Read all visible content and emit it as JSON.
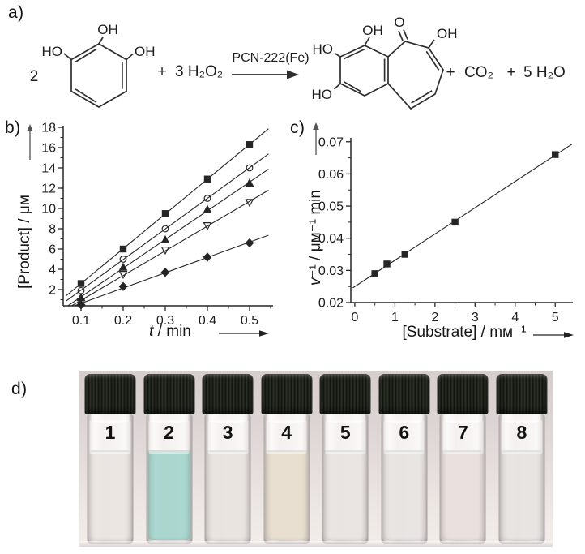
{
  "figure": {
    "panel_a_label": "a)",
    "panel_b_label": "b)",
    "panel_c_label": "c)",
    "panel_d_label": "d)"
  },
  "reaction": {
    "coefficient_left": "2",
    "plus_1": "+",
    "oxidant": "3 H₂O₂",
    "catalyst": "PCN-222(Fe)",
    "plus_2": "+",
    "co2": "CO₂",
    "plus_3": "+",
    "water": "5 H₂O",
    "labels": {
      "oh": "OH",
      "ho": "HO",
      "o": "O"
    }
  },
  "panels": {
    "b": {
      "ylabel": "[Product] / μᴍ",
      "xlabel_italic": "t",
      "xlabel_rest": " / min"
    },
    "c": {
      "ylabel_italic": "v",
      "ylabel_rest": "⁻¹ / μᴍ⁻¹ min",
      "xlabel": "[Substrate] / mᴍ⁻¹"
    },
    "d": {
      "cap_color": "#1d211b",
      "vials": [
        {
          "number": "1",
          "liquid_color": "#ece6e3"
        },
        {
          "number": "2",
          "liquid_color": "#a7d6ce"
        },
        {
          "number": "3",
          "liquid_color": "#eae4e1"
        },
        {
          "number": "4",
          "liquid_color": "#e8dfd0"
        },
        {
          "number": "5",
          "liquid_color": "#eae5e2"
        },
        {
          "number": "6",
          "liquid_color": "#e9e5e2"
        },
        {
          "number": "7",
          "liquid_color": "#eae1de"
        },
        {
          "number": "8",
          "liquid_color": "#e7e4e1"
        }
      ]
    }
  },
  "chart_data": [
    {
      "id": "panel-b",
      "type": "scatter",
      "title": "",
      "xlabel": "t / min",
      "ylabel": "[Product] / μM",
      "x": [
        0.1,
        0.2,
        0.3,
        0.4,
        0.5
      ],
      "series": [
        {
          "name": "filled-square",
          "marker": "square",
          "filled": true,
          "values": [
            2.6,
            6.0,
            9.5,
            12.9,
            16.3
          ]
        },
        {
          "name": "open-circle",
          "marker": "circle",
          "filled": false,
          "values": [
            1.9,
            5.0,
            8.0,
            11.0,
            14.0
          ]
        },
        {
          "name": "filled-triangle-up",
          "marker": "triangle-up",
          "filled": true,
          "values": [
            1.2,
            4.2,
            6.9,
            9.9,
            12.5
          ]
        },
        {
          "name": "open-triangle-down",
          "marker": "triangle-down",
          "filled": false,
          "values": [
            0.8,
            3.5,
            5.9,
            8.3,
            10.6
          ]
        },
        {
          "name": "filled-diamond",
          "marker": "diamond",
          "filled": true,
          "values": [
            0.5,
            2.3,
            3.7,
            5.2,
            6.6
          ]
        }
      ],
      "xlim": [
        0.0577,
        0.5558
      ],
      "ylim": [
        0.4,
        18.16
      ],
      "xticks": [
        0.1,
        0.2,
        0.3,
        0.4,
        0.5
      ],
      "xtick_labels": [
        "0.1",
        "0.2",
        "0.3",
        "0.4",
        "0.5"
      ],
      "yticks": [
        2,
        4,
        6,
        8,
        10,
        12,
        14,
        16,
        18
      ],
      "ytick_labels": [
        "2",
        "4",
        "6",
        "8",
        "10",
        "12",
        "14",
        "16",
        "18"
      ],
      "x_minor_step": 0.05,
      "y_minor_step": 1,
      "fit_x_range": [
        0.065,
        0.545
      ],
      "grid": false,
      "legend": "none"
    },
    {
      "id": "panel-c",
      "type": "scatter",
      "title": "",
      "xlabel": "[Substrate] / mM⁻¹",
      "ylabel": "v⁻¹ / μM⁻¹ min",
      "x": [
        0.5,
        0.8,
        1.25,
        2.5,
        5.0
      ],
      "series": [
        {
          "name": "filled-square",
          "marker": "square",
          "filled": true,
          "values": [
            0.029,
            0.032,
            0.035,
            0.045,
            0.066
          ]
        }
      ],
      "xlim": [
        -0.1,
        5.44
      ],
      "ylim": [
        0.02,
        0.0712
      ],
      "xticks": [
        0,
        1,
        2,
        3,
        4,
        5
      ],
      "xtick_labels": [
        "0",
        "1",
        "2",
        "3",
        "4",
        "5"
      ],
      "yticks": [
        0.02,
        0.03,
        0.04,
        0.05,
        0.06,
        0.07
      ],
      "ytick_labels": [
        "0.02",
        "0.03",
        "0.04",
        "0.05",
        "0.06",
        "0.07"
      ],
      "x_minor_step": 0.5,
      "y_minor_step": 0.005,
      "fit_x_range": [
        -0.05,
        5.42
      ],
      "grid": false,
      "legend": "none"
    }
  ]
}
